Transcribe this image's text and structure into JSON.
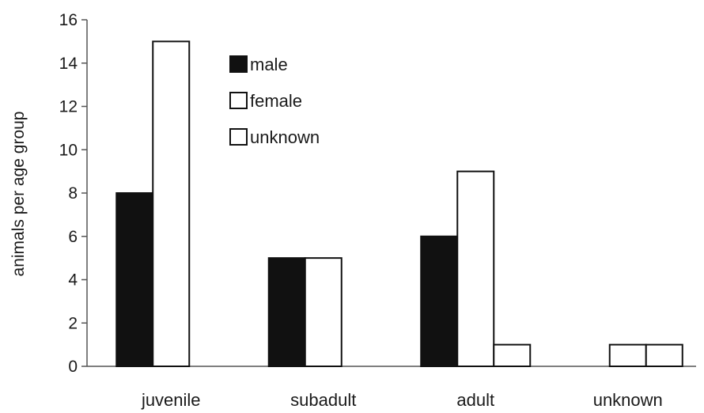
{
  "chart_data": {
    "type": "bar",
    "title": "",
    "xlabel": "",
    "ylabel": "animals per age group",
    "ylim": [
      0,
      16
    ],
    "yticks": [
      0,
      2,
      4,
      6,
      8,
      10,
      12,
      14,
      16
    ],
    "grid": false,
    "legend_position": "top-center",
    "categories": [
      "juvenile",
      "subadult",
      "adult",
      "unknown"
    ],
    "series": [
      {
        "name": "male",
        "values": [
          8,
          5,
          6,
          0
        ],
        "color": "#111111"
      },
      {
        "name": "female",
        "values": [
          15,
          5,
          9,
          1
        ],
        "color": "#ffffff"
      },
      {
        "name": "unknown",
        "values": [
          0,
          0,
          1,
          1
        ],
        "color": "#ffffff"
      }
    ]
  }
}
